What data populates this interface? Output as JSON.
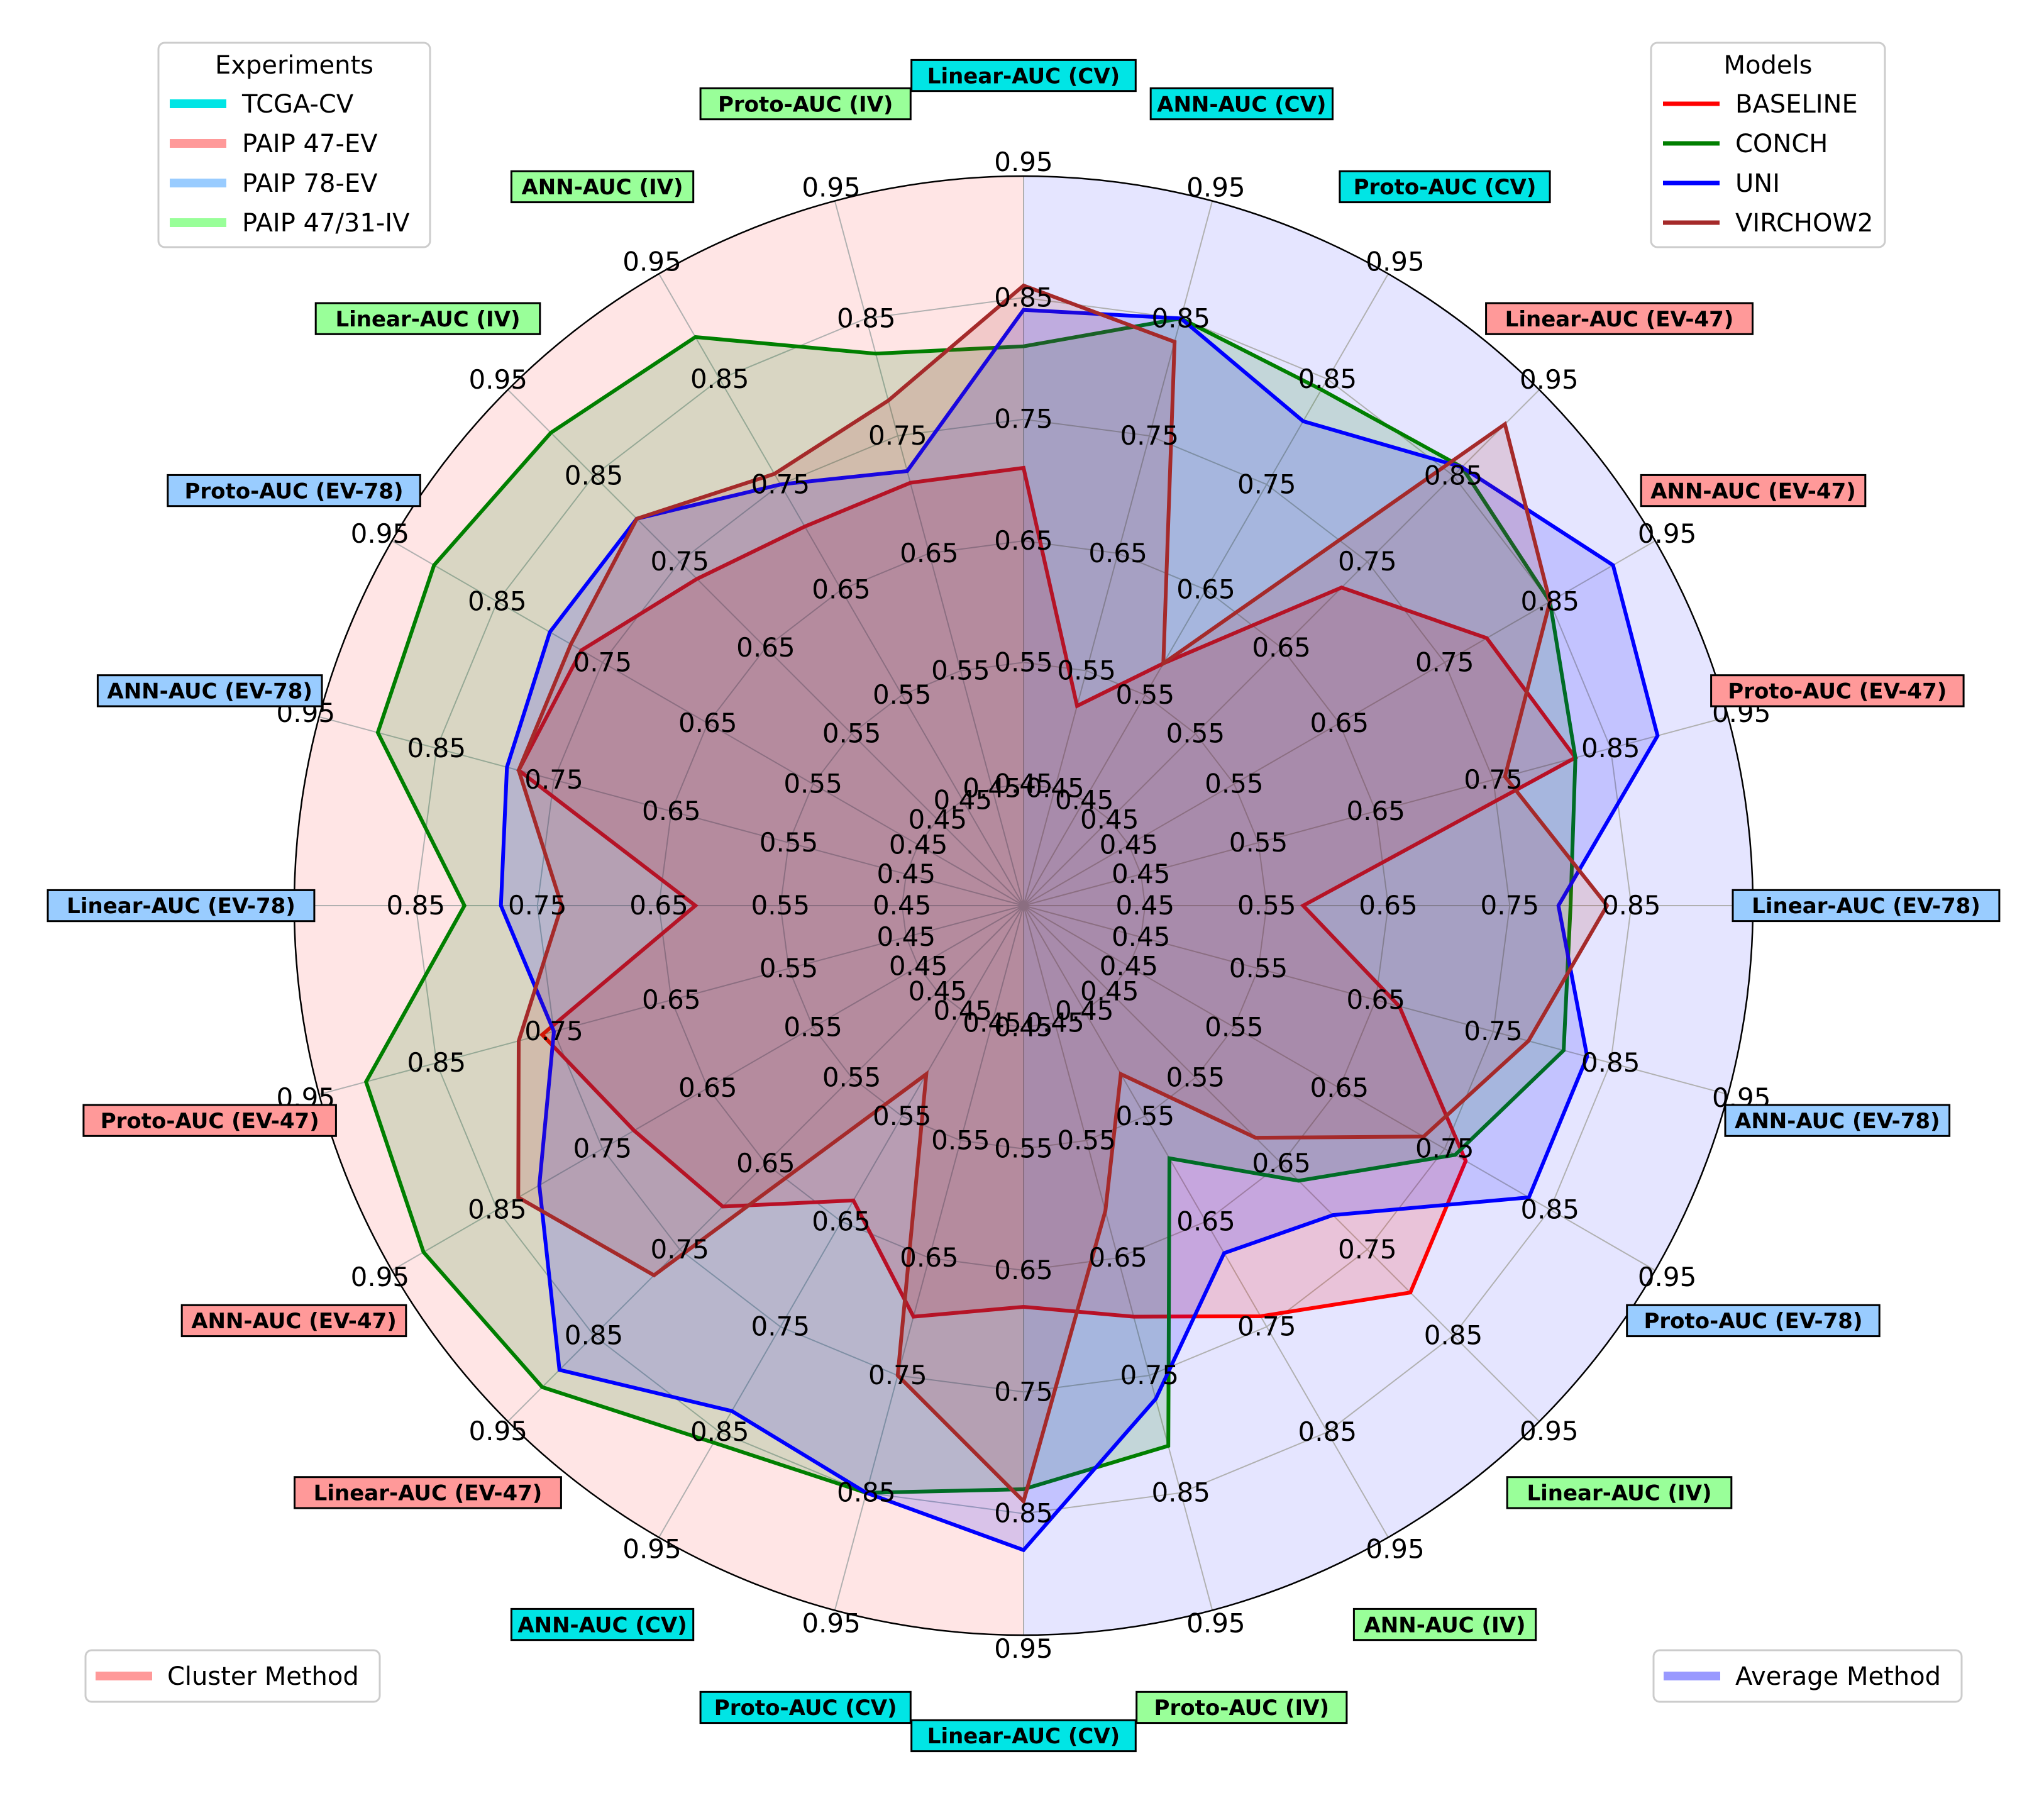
{
  "chart_data": {
    "type": "radar",
    "rlim": [
      0.35,
      0.95
    ],
    "ring_ticks": [
      0.45,
      0.55,
      0.65,
      0.75,
      0.85,
      0.95
    ],
    "ring_labels": [
      "0.45",
      "0.55",
      "0.65",
      "0.75",
      "0.85",
      "0.95"
    ],
    "axes": [
      {
        "label": "Linear-AUC (CV)",
        "group": "TCGA-CV"
      },
      {
        "label": "ANN-AUC (CV)",
        "group": "TCGA-CV"
      },
      {
        "label": "Proto-AUC (CV)",
        "group": "TCGA-CV"
      },
      {
        "label": "Linear-AUC (EV-47)",
        "group": "PAIP 47-EV"
      },
      {
        "label": "ANN-AUC (EV-47)",
        "group": "PAIP 47-EV"
      },
      {
        "label": "Proto-AUC (EV-47)",
        "group": "PAIP 47-EV"
      },
      {
        "label": "Linear-AUC (EV-78)",
        "group": "PAIP 78-EV"
      },
      {
        "label": "ANN-AUC (EV-78)",
        "group": "PAIP 78-EV"
      },
      {
        "label": "Proto-AUC (EV-78)",
        "group": "PAIP 78-EV"
      },
      {
        "label": "Linear-AUC (IV)",
        "group": "PAIP 47/31-IV"
      },
      {
        "label": "ANN-AUC (IV)",
        "group": "PAIP 47/31-IV"
      },
      {
        "label": "Proto-AUC (IV)",
        "group": "PAIP 47/31-IV"
      },
      {
        "label": "Linear-AUC (CV)",
        "group": "TCGA-CV"
      },
      {
        "label": "Proto-AUC (CV)",
        "group": "TCGA-CV"
      },
      {
        "label": "ANN-AUC (CV)",
        "group": "TCGA-CV"
      },
      {
        "label": "Linear-AUC (EV-47)",
        "group": "PAIP 47-EV"
      },
      {
        "label": "ANN-AUC (EV-47)",
        "group": "PAIP 47-EV"
      },
      {
        "label": "Proto-AUC (EV-47)",
        "group": "PAIP 47-EV"
      },
      {
        "label": "Linear-AUC (EV-78)",
        "group": "PAIP 78-EV"
      },
      {
        "label": "ANN-AUC (EV-78)",
        "group": "PAIP 78-EV"
      },
      {
        "label": "Proto-AUC (EV-78)",
        "group": "PAIP 78-EV"
      },
      {
        "label": "Linear-AUC (IV)",
        "group": "PAIP 47/31-IV"
      },
      {
        "label": "ANN-AUC (IV)",
        "group": "PAIP 47/31-IV"
      },
      {
        "label": "Proto-AUC (IV)",
        "group": "PAIP 47/31-IV"
      }
    ],
    "groups": [
      {
        "name": "TCGA-CV",
        "color": "#00e5e5"
      },
      {
        "name": "PAIP 47-EV",
        "color": "#ff9999"
      },
      {
        "name": "PAIP 78-EV",
        "color": "#99ccff"
      },
      {
        "name": "PAIP 47/31-IV",
        "color": "#99ff99"
      }
    ],
    "series": [
      {
        "name": "BASELINE",
        "color": "#ff0000",
        "values": [
          0.71,
          0.52,
          0.58,
          0.72,
          0.79,
          0.82,
          0.58,
          0.67,
          0.77,
          0.8,
          0.74,
          0.7,
          0.68,
          0.7,
          0.63,
          0.7,
          0.72,
          0.76,
          0.62,
          0.78,
          0.77,
          0.73,
          0.71,
          0.71
        ]
      },
      {
        "name": "CONCH",
        "color": "#007f00",
        "values": [
          0.81,
          0.85,
          0.84,
          0.86,
          0.85,
          0.82,
          0.8,
          0.81,
          0.76,
          0.67,
          0.59,
          0.81,
          0.83,
          0.85,
          0.86,
          0.91,
          0.92,
          0.91,
          0.81,
          0.9,
          0.91,
          0.9,
          0.89,
          0.82
        ]
      },
      {
        "name": "UNI",
        "color": "#0000ff",
        "values": [
          0.84,
          0.85,
          0.81,
          0.86,
          0.91,
          0.89,
          0.79,
          0.83,
          0.83,
          0.71,
          0.68,
          0.77,
          0.88,
          0.85,
          0.83,
          0.89,
          0.81,
          0.75,
          0.78,
          0.79,
          0.8,
          0.8,
          0.75,
          0.72
        ]
      },
      {
        "name": "VIRCHOW2",
        "color": "#a52a2a",
        "values": [
          0.86,
          0.83,
          0.58,
          0.91,
          0.85,
          0.76,
          0.83,
          0.78,
          0.73,
          0.62,
          0.51,
          0.61,
          0.84,
          0.75,
          0.51,
          0.78,
          0.83,
          0.78,
          0.73,
          0.78,
          0.78,
          0.8,
          0.76,
          0.78
        ]
      }
    ],
    "half_fills": [
      {
        "name": "Cluster Method",
        "color": "#ff9999",
        "side": "left"
      },
      {
        "name": "Average Method",
        "color": "#9999ff",
        "side": "right"
      }
    ]
  },
  "legends": {
    "experiments_title": "Experiments",
    "models_title": "Models"
  }
}
